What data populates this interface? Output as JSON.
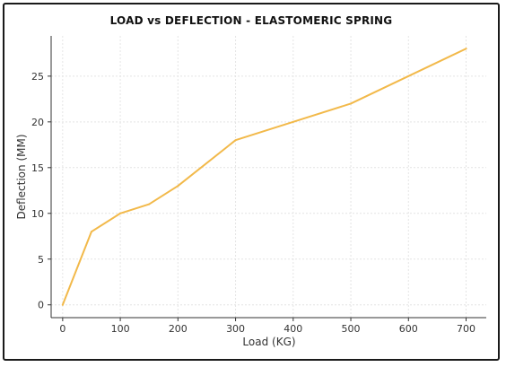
{
  "chart_data": {
    "type": "line",
    "title": "LOAD vs DEFLECTION - ELASTOMERIC SPRING",
    "xlabel": "Load (KG)",
    "ylabel": "Deflection (MM)",
    "x": [
      0,
      50,
      100,
      150,
      200,
      300,
      400,
      500,
      700
    ],
    "series": [
      {
        "values": [
          0,
          8,
          10,
          11,
          13,
          18,
          20,
          22,
          28
        ]
      }
    ],
    "xticks": [
      0,
      100,
      200,
      300,
      400,
      500,
      600,
      700
    ],
    "yticks": [
      0,
      5,
      10,
      15,
      20,
      25
    ],
    "xlim": [
      -20,
      735
    ],
    "ylim": [
      -1.4,
      29.4
    ],
    "grid": true,
    "line_color": "#f2b94a",
    "grid_color": "#e4e4e4"
  }
}
